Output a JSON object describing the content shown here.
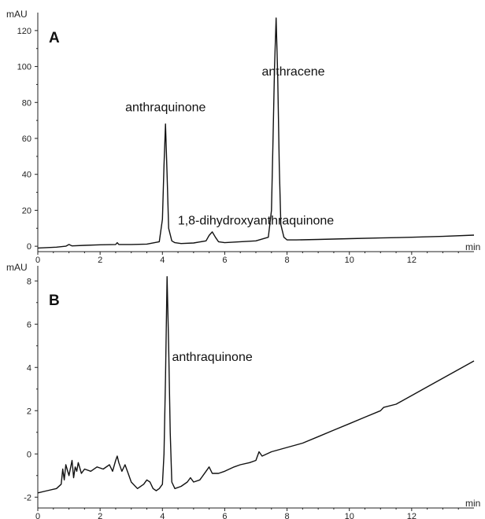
{
  "chart_data": [
    {
      "type": "line",
      "panel_label": "A",
      "ylabel": "mAU",
      "xlabel": "min",
      "xlim": [
        0,
        14
      ],
      "ylim": [
        -3,
        130
      ],
      "x_ticks": [
        0,
        2,
        4,
        6,
        8,
        10,
        12
      ],
      "y_ticks": [
        0,
        20,
        40,
        60,
        80,
        100,
        120
      ],
      "annotations": [
        {
          "text": "anthraquinone",
          "x": 4.1,
          "y": 75
        },
        {
          "text": "1,8-dihydroxyanthraquinone",
          "x": 7.0,
          "y": 12
        },
        {
          "text": "anthracene",
          "x": 8.2,
          "y": 95
        }
      ],
      "series": [
        {
          "x": [
            0,
            0.6,
            0.9,
            1.0,
            1.1,
            1.5,
            2.0,
            2.5,
            2.55,
            2.6,
            3.0,
            3.5,
            3.9,
            4.0,
            4.05,
            4.1,
            4.15,
            4.2,
            4.3,
            4.4,
            4.6,
            5.0,
            5.4,
            5.5,
            5.6,
            5.7,
            5.8,
            6.0,
            6.5,
            7.0,
            7.4,
            7.5,
            7.55,
            7.6,
            7.65,
            7.7,
            7.75,
            7.8,
            7.9,
            8.0,
            8.3,
            9.0,
            10.0,
            11.0,
            12.0,
            13.0,
            14.0
          ],
          "y": [
            -1,
            -0.5,
            0,
            1,
            0.2,
            0.5,
            0.8,
            1.0,
            2.0,
            1.0,
            1.0,
            1.2,
            2.5,
            15,
            45,
            68,
            40,
            10,
            3,
            2,
            1.5,
            1.8,
            3,
            6,
            8,
            5,
            2.5,
            2,
            2.5,
            3,
            5,
            20,
            60,
            100,
            127,
            95,
            45,
            12,
            5,
            3.5,
            3.5,
            3.8,
            4.2,
            4.6,
            5.0,
            5.5,
            6.2
          ]
        }
      ]
    },
    {
      "type": "line",
      "panel_label": "B",
      "ylabel": "mAU",
      "xlabel": "min",
      "xlim": [
        0,
        14
      ],
      "ylim": [
        -2.5,
        8.7
      ],
      "x_ticks": [
        0,
        2,
        4,
        6,
        8,
        10,
        12
      ],
      "y_ticks": [
        -2,
        0,
        2,
        4,
        6,
        8
      ],
      "annotations": [
        {
          "text": "anthraquinone",
          "x": 5.6,
          "y": 4.3
        }
      ],
      "series": [
        {
          "x": [
            0,
            0.3,
            0.6,
            0.75,
            0.8,
            0.85,
            0.9,
            1.0,
            1.1,
            1.15,
            1.2,
            1.25,
            1.3,
            1.4,
            1.5,
            1.7,
            1.9,
            2.1,
            2.3,
            2.4,
            2.5,
            2.55,
            2.6,
            2.7,
            2.8,
            2.9,
            3.0,
            3.2,
            3.4,
            3.5,
            3.6,
            3.7,
            3.8,
            3.9,
            4.0,
            4.05,
            4.1,
            4.15,
            4.2,
            4.25,
            4.3,
            4.4,
            4.6,
            4.8,
            4.9,
            5.0,
            5.2,
            5.4,
            5.5,
            5.6,
            5.8,
            6.0,
            6.3,
            6.5,
            6.8,
            7.0,
            7.1,
            7.2,
            7.5,
            8.0,
            8.5,
            9.0,
            9.5,
            10.0,
            10.5,
            11.0,
            11.1,
            11.5,
            12.0,
            12.5,
            13.0,
            13.5,
            14.0
          ],
          "y": [
            -1.8,
            -1.7,
            -1.6,
            -1.4,
            -0.7,
            -1.2,
            -0.5,
            -1.0,
            -0.3,
            -1.1,
            -0.6,
            -0.8,
            -0.4,
            -0.9,
            -0.7,
            -0.8,
            -0.6,
            -0.7,
            -0.5,
            -0.8,
            -0.3,
            -0.1,
            -0.4,
            -0.8,
            -0.5,
            -0.9,
            -1.3,
            -1.6,
            -1.4,
            -1.2,
            -1.3,
            -1.6,
            -1.7,
            -1.6,
            -1.4,
            0,
            3.5,
            8.2,
            5,
            1,
            -1.3,
            -1.6,
            -1.5,
            -1.3,
            -1.1,
            -1.3,
            -1.2,
            -0.8,
            -0.6,
            -0.9,
            -0.9,
            -0.8,
            -0.6,
            -0.5,
            -0.4,
            -0.3,
            0.1,
            -0.1,
            0.1,
            0.3,
            0.5,
            0.8,
            1.1,
            1.4,
            1.7,
            2.0,
            2.15,
            2.3,
            2.7,
            3.1,
            3.5,
            3.9,
            4.3
          ]
        }
      ]
    }
  ]
}
